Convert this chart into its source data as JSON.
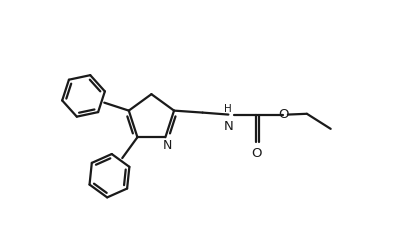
{
  "background_color": "#ffffff",
  "line_color": "#1a1a1a",
  "line_width": 1.6,
  "fig_width": 3.98,
  "fig_height": 2.3,
  "dpi": 100,
  "xlim": [
    0,
    10
  ],
  "ylim": [
    0,
    5.8
  ]
}
